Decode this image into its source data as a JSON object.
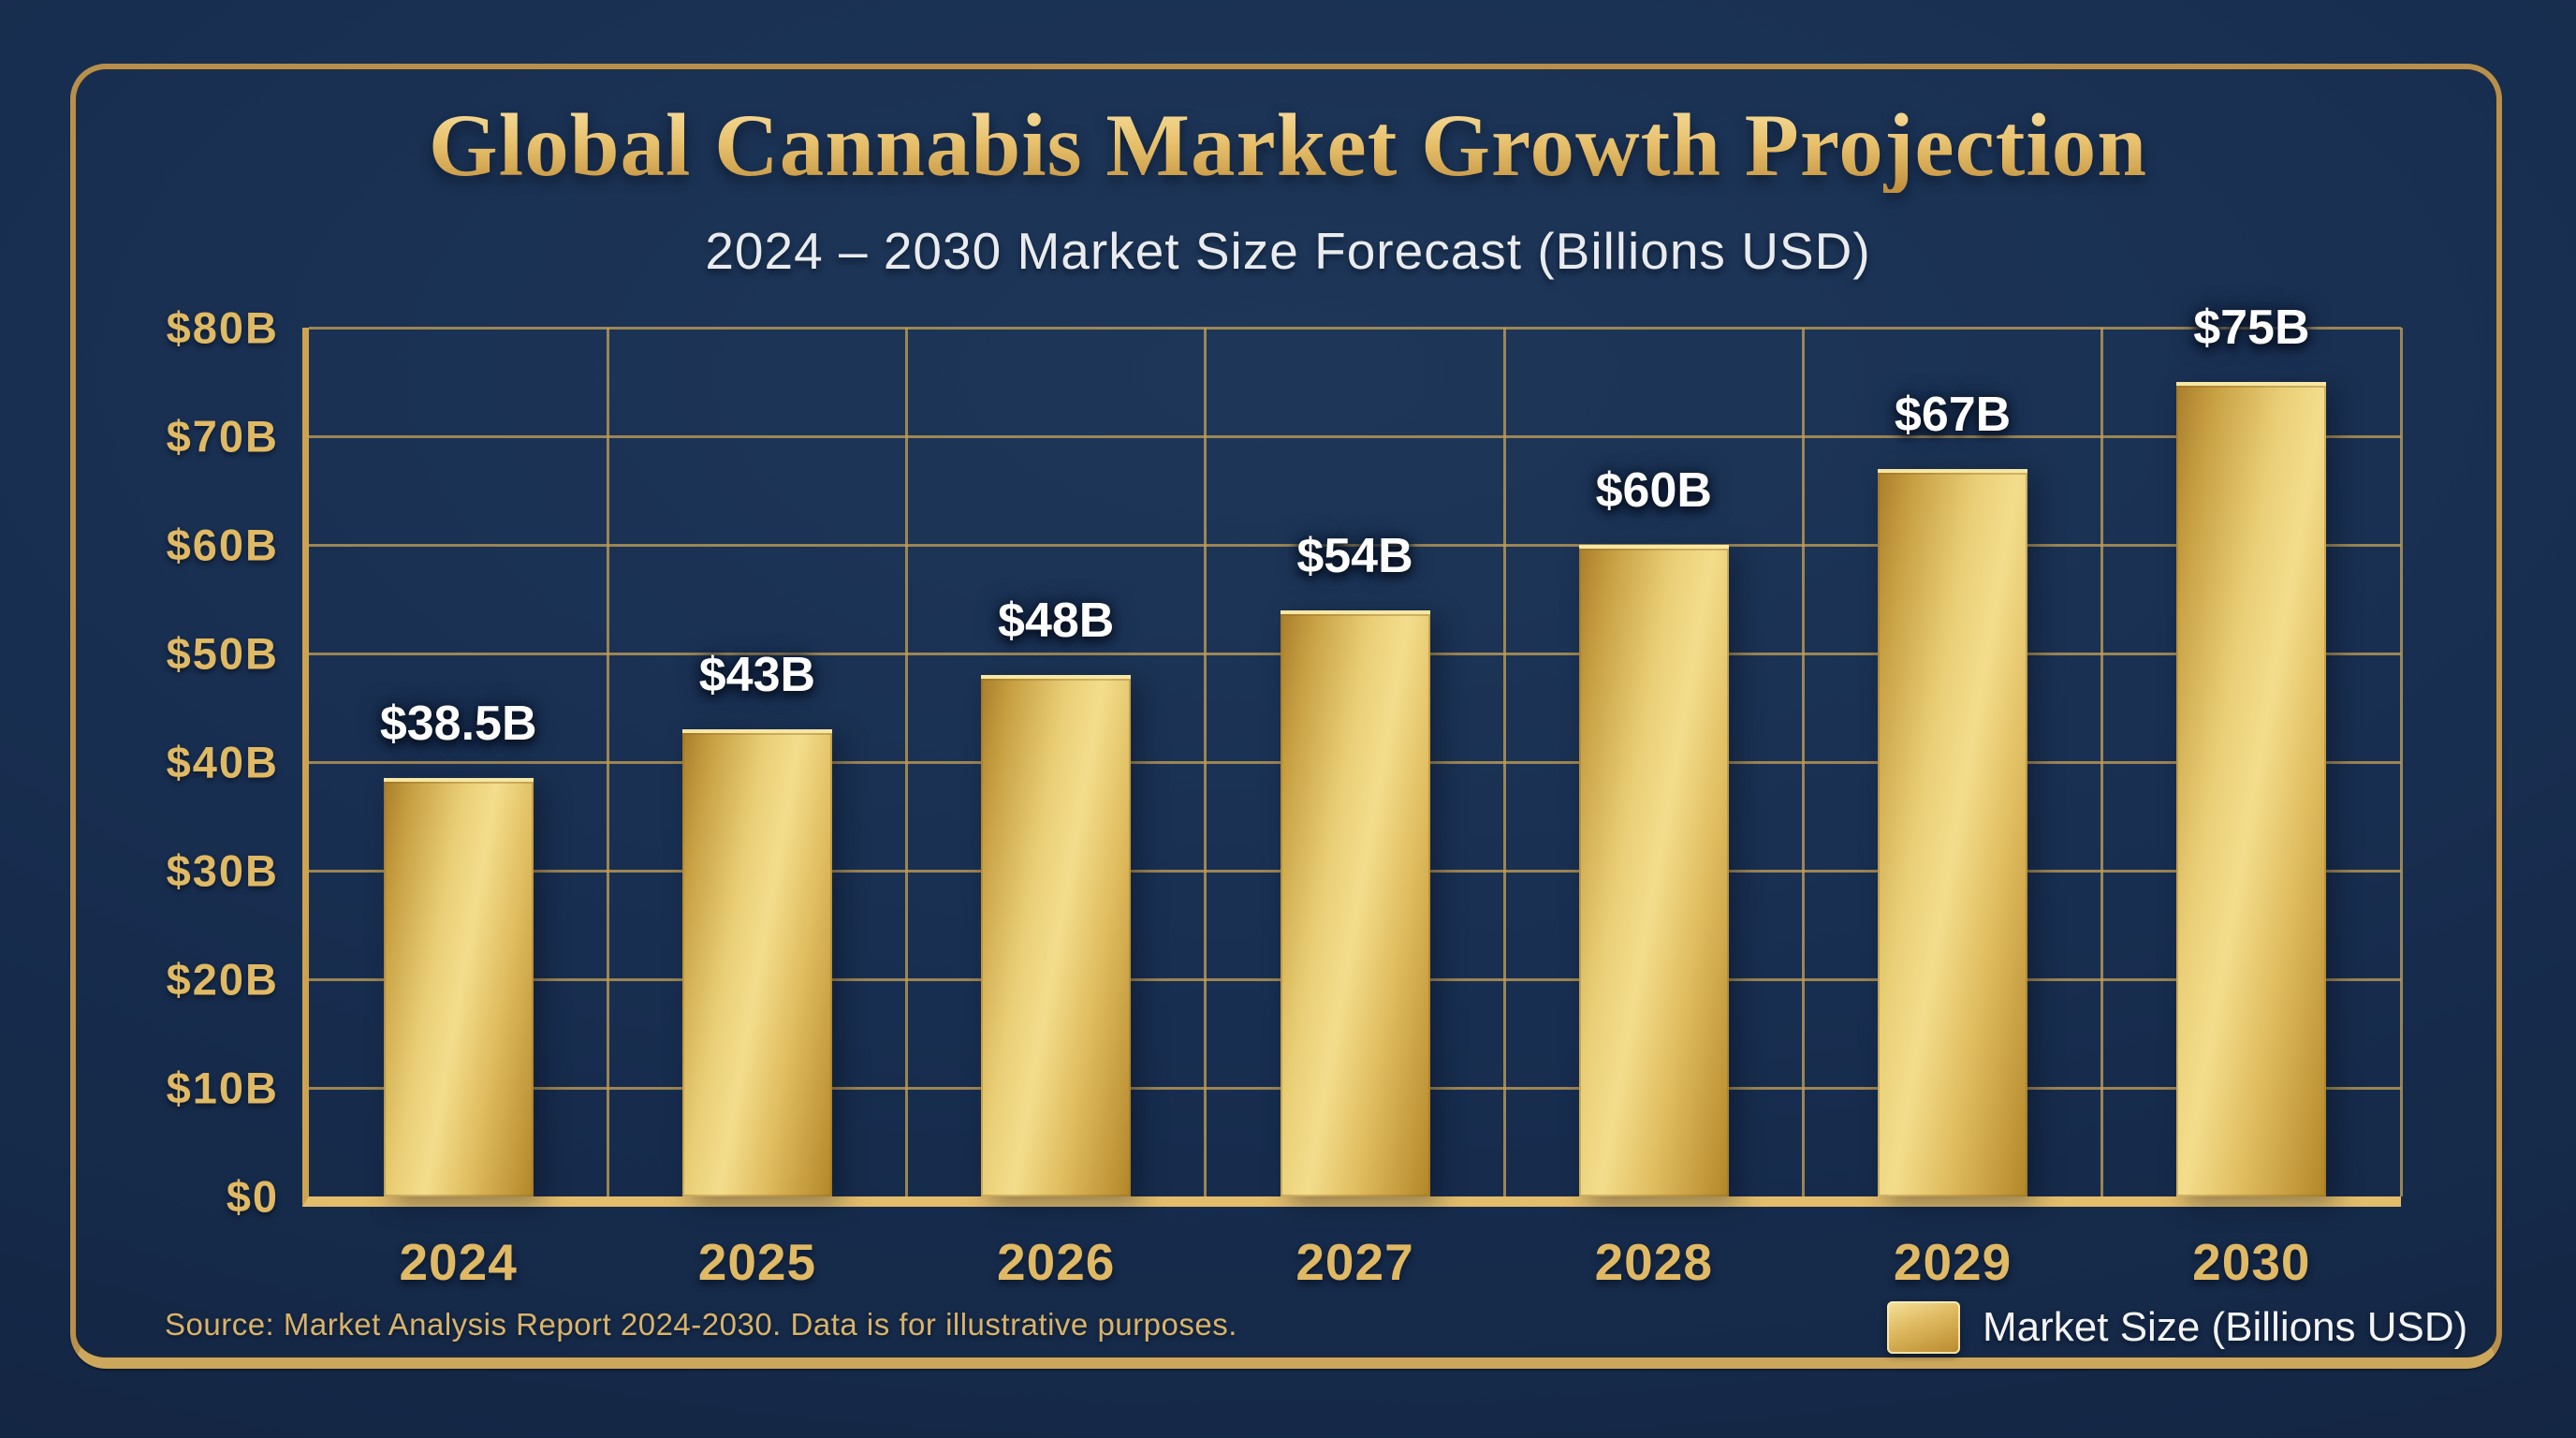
{
  "title": "Global Cannabis Market Growth Projection",
  "subtitle": "2024 – 2030 Market Size Forecast (Billions USD)",
  "source_note": "Source: Market Analysis Report 2024-2030. Data is for illustrative purposes.",
  "legend": {
    "label": "Market Size (Billions USD)"
  },
  "colors": {
    "background_navy": "#16294a",
    "frame_gold": "#b8904b",
    "grid_gold": "#c19d54",
    "axis_gold": "#e2bd6c",
    "accent_gold_text": "#e0b964",
    "bar_gold_light": "#f3dd8c",
    "bar_gold_dark": "#b08627",
    "value_label_white": "#fdfdfd",
    "subtitle_white": "#e9ebef"
  },
  "chart_data": {
    "type": "bar",
    "title": "Global Cannabis Market Growth Projection",
    "subtitle": "2024 – 2030 Market Size Forecast (Billions USD)",
    "categories": [
      "2024",
      "2025",
      "2026",
      "2027",
      "2028",
      "2029",
      "2030"
    ],
    "values": [
      38.5,
      43,
      48,
      54,
      60,
      67,
      75
    ],
    "bar_labels": [
      "$38.5B",
      "$43B",
      "$48B",
      "$54B",
      "$60B",
      "$67B",
      "$75B"
    ],
    "series_name": "Market Size (Billions USD)",
    "xlabel": "",
    "ylabel": "",
    "ytick_labels": [
      "$0",
      "$10B",
      "$20B",
      "$30B",
      "$40B",
      "$50B",
      "$60B",
      "$70B",
      "$80B"
    ],
    "ylim": [
      0,
      80
    ],
    "grid": true,
    "legend_position": "bottom-right"
  }
}
